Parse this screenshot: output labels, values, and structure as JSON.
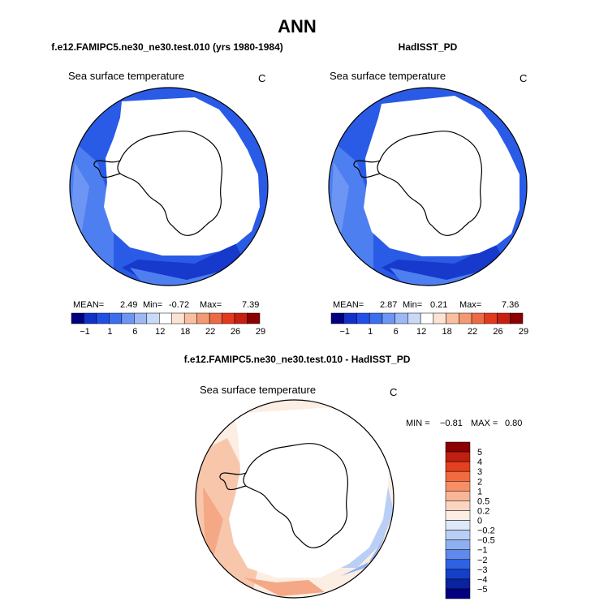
{
  "page_title": "ANN",
  "variable_label": "Sea surface temperature",
  "unit": "C",
  "panels": [
    {
      "title": "f.e12.FAMIPC5.ne30_ne30.test.010 (yrs 1980-1984)",
      "stats": {
        "mean_label": "MEAN=",
        "mean": "2.49",
        "min_label": "Min=",
        "min": "-0.72",
        "max_label": "Max=",
        "max": "7.39"
      }
    },
    {
      "title": "HadISST_PD",
      "stats": {
        "mean_label": "MEAN=",
        "mean": "2.87",
        "min_label": "Min=",
        "min": "0.21",
        "max_label": "Max=",
        "max": "7.36"
      }
    }
  ],
  "colorbar_abs": {
    "labels": [
      "−1",
      "1",
      "6",
      "12",
      "18",
      "22",
      "26",
      "29"
    ],
    "colors": [
      "#000080",
      "#1131c8",
      "#2050e8",
      "#3b6ff0",
      "#6d96f4",
      "#9cb9f6",
      "#c9daf8",
      "#ffffff",
      "#fde3d3",
      "#f8c0a0",
      "#f39a73",
      "#ee6a45",
      "#e33a1e",
      "#c81f10",
      "#8b0000"
    ]
  },
  "diff_panel": {
    "title": "f.e12.FAMIPC5.ne30_ne30.test.010 - HadISST_PD",
    "min_label": "MIN =",
    "min": "−0.81",
    "max_label": "MAX =",
    "max": "0.80",
    "levels": [
      "5",
      "4",
      "3",
      "2",
      "1",
      "0.5",
      "0.2",
      "0",
      "−0.2",
      "−0.5",
      "−1",
      "−2",
      "−3",
      "−4",
      "−5"
    ],
    "colors": [
      "#8b0000",
      "#c0200f",
      "#e2401e",
      "#f26a3e",
      "#f68f66",
      "#f8b597",
      "#fbd5c0",
      "#fdeee4",
      "#dde8f9",
      "#b9cff5",
      "#8fb0f0",
      "#5f89eb",
      "#2f61e3",
      "#1440c8",
      "#0a229e",
      "#000080"
    ]
  },
  "colors": {
    "ocean_main": "#2a5be6",
    "ocean_dark": "#1739cc",
    "ocean_light": "#4d7ff0",
    "land": "#ffffff",
    "coast": "#000000"
  }
}
